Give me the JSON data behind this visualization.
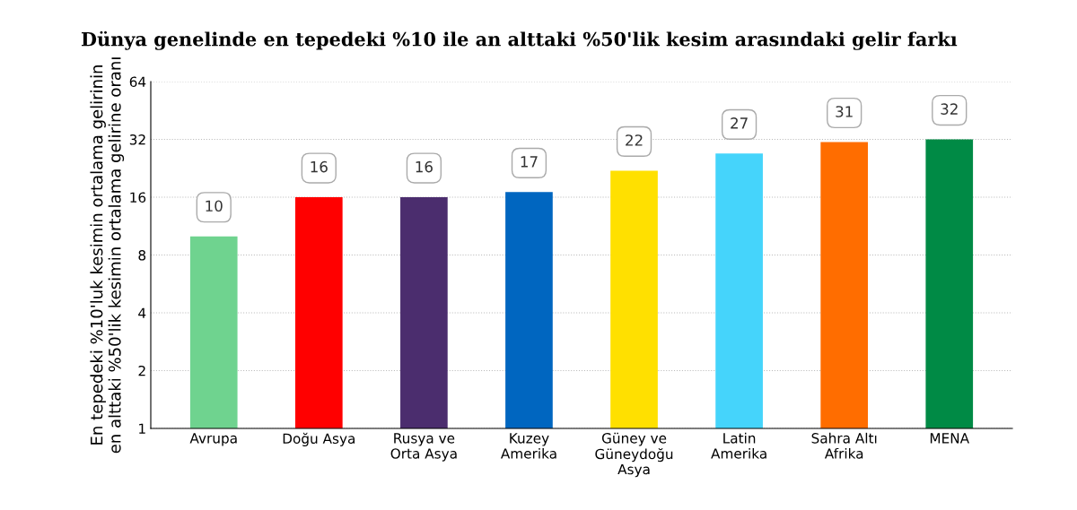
{
  "chart_data": {
    "type": "bar",
    "title": "Dünya genelinde en tepedeki %10 ile an alttaki %50'lik kesim arasındaki gelir farkı",
    "ylabel": "En tepedeki %10'luk kesimin ortalama gelirinin\nen alttaki %50'lik kesimin ortalama gelirine oranı",
    "categories": [
      "Avrupa",
      "Doğu Asya",
      "Rusya ve\nOrta Asya",
      "Kuzey\nAmerika",
      "Güney ve\nGüneydoğu\nAsya",
      "Latin\nAmerika",
      "Sahra Altı\nAfrika",
      "MENA"
    ],
    "values": [
      10,
      16,
      16,
      17,
      22,
      27,
      31,
      32
    ],
    "colors": [
      "#6fd38f",
      "#ff0000",
      "#4b2d6e",
      "#0066c0",
      "#ffe000",
      "#45d4fb",
      "#ff6d00",
      "#008a45"
    ],
    "log": true,
    "ylim": [
      1,
      64
    ],
    "yticks": [
      1,
      2,
      4,
      8,
      16,
      32,
      64
    ],
    "grid": "y",
    "data_labels": true
  }
}
